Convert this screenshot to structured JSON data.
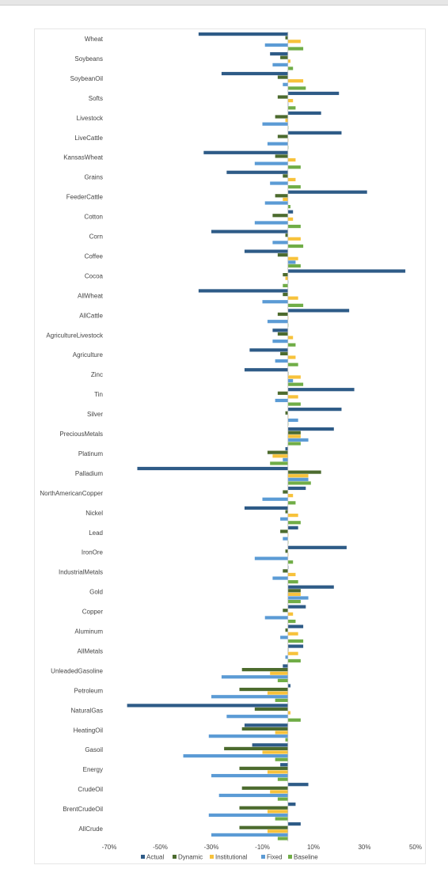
{
  "colors": {
    "Actual": "#2e5b87",
    "Dynamic": "#4c6b2e",
    "Institutional": "#f7c23b",
    "Fixed": "#5b9bd5",
    "Baseline": "#70ad47"
  },
  "chart_data": {
    "type": "bar",
    "orientation": "horizontal",
    "xlim": [
      -70,
      50
    ],
    "x_ticks": [
      "-70%",
      "-50%",
      "-30%",
      "-10%",
      "10%",
      "30%",
      "50%"
    ],
    "x_tick_values": [
      -70,
      -50,
      -30,
      -10,
      10,
      30,
      50
    ],
    "legend_position": "bottom",
    "grid": false,
    "categories": [
      "Wheat",
      "Soybeans",
      "SoybeanOil",
      "Softs",
      "Livestock",
      "LiveCattle",
      "KansasWheat",
      "Grains",
      "FeederCattle",
      "Cotton",
      "Corn",
      "Coffee",
      "Cocoa",
      "AllWheat",
      "AllCattle",
      "AgricultureLivestock",
      "Agriculture",
      "Zinc",
      "Tin",
      "Silver",
      "PreciousMetals",
      "Platinum",
      "Palladium",
      "NorthAmericanCopper",
      "Nickel",
      "Lead",
      "IronOre",
      "IndustrialMetals",
      "Gold",
      "Copper",
      "Aluminum",
      "AllMetals",
      "UnleadedGasoline",
      "Petroleum",
      "NaturalGas",
      "HeatingOil",
      "Gasoil",
      "Energy",
      "CrudeOil",
      "BrentCrudeOil",
      "AllCrude"
    ],
    "series": [
      {
        "name": "Actual",
        "values": [
          -35,
          -7,
          -26,
          20,
          13,
          21,
          -33,
          -24,
          31,
          2,
          -30,
          -17,
          46,
          -35,
          24,
          -6,
          -15,
          -17,
          26,
          21,
          18,
          -1,
          -59,
          7,
          -17,
          4,
          23,
          0,
          18,
          7,
          6,
          6,
          -2,
          1,
          -63,
          -17,
          -14,
          -3,
          8,
          3,
          5
        ]
      },
      {
        "name": "Dynamic",
        "values": [
          -1,
          -3,
          -4,
          -4,
          -5,
          -4,
          -5,
          -2,
          -5,
          -6,
          -1,
          -4,
          -2,
          -2,
          -4,
          -4,
          -3,
          0,
          -4,
          -1,
          5,
          -8,
          13,
          -2,
          -1,
          -3,
          -1,
          -2,
          5,
          -2,
          -1,
          0,
          -18,
          -19,
          -13,
          -18,
          -25,
          -19,
          -18,
          -19,
          -19
        ]
      },
      {
        "name": "Institutional",
        "values": [
          5,
          1,
          6,
          2,
          -1,
          0,
          3,
          3,
          -2,
          2,
          5,
          4,
          -1,
          4,
          0,
          2,
          3,
          5,
          4,
          0,
          5,
          -6,
          8,
          2,
          4,
          0,
          0,
          3,
          5,
          2,
          4,
          4,
          -7,
          -8,
          1,
          -5,
          -10,
          -8,
          -7,
          -8,
          -8
        ]
      },
      {
        "name": "Fixed",
        "values": [
          -9,
          -6,
          -2,
          0,
          -10,
          -8,
          -13,
          -7,
          -9,
          -13,
          -6,
          3,
          0,
          -10,
          -8,
          -6,
          -5,
          2,
          -5,
          4,
          8,
          -2,
          8,
          -10,
          -3,
          -2,
          -13,
          -6,
          8,
          -9,
          -3,
          -1,
          -26,
          -30,
          -24,
          -31,
          -41,
          -30,
          -27,
          -31,
          -30
        ]
      },
      {
        "name": "Baseline",
        "values": [
          6,
          2,
          7,
          3,
          0,
          0,
          5,
          5,
          1,
          5,
          6,
          5,
          -2,
          6,
          0,
          3,
          4,
          6,
          5,
          0,
          5,
          -7,
          9,
          3,
          5,
          0,
          2,
          4,
          5,
          3,
          6,
          5,
          -4,
          -5,
          5,
          -1,
          -5,
          -4,
          -4,
          -5,
          -4
        ]
      }
    ]
  }
}
